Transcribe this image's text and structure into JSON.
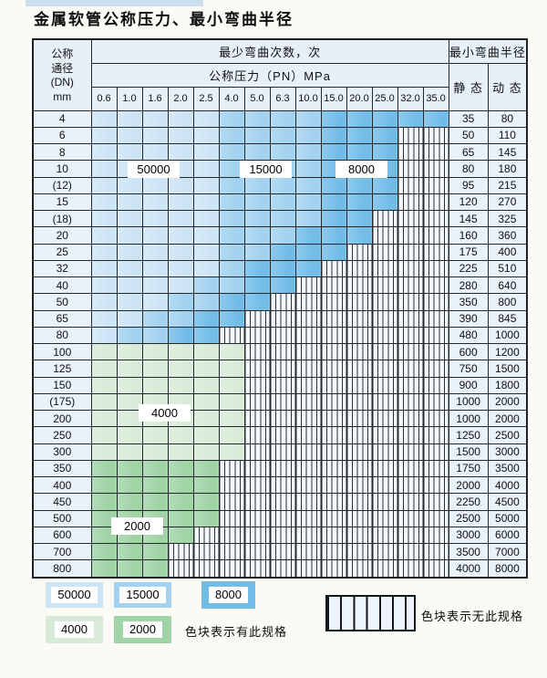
{
  "page": {
    "title": "金属软管公称压力、最小弯曲半径"
  },
  "table": {
    "header": {
      "dn_label_lines": [
        "公称",
        "通径",
        "(DN)",
        "mm"
      ],
      "bend_cycles_label": "最少弯曲次数，次",
      "pressure_label": "公称压力（PN）MPa",
      "radius_label": "最小弯曲半径",
      "static_label": "静 态",
      "dynamic_label": "动 态",
      "pressure_columns": [
        "0.6",
        "1.0",
        "1.6",
        "2.0",
        "2.5",
        "4.0",
        "5.0",
        "6.3",
        "10.0",
        "15.0",
        "20.0",
        "25.0",
        "32.0",
        "35.0"
      ]
    },
    "band_colors": {
      "L": "#cde4f5",
      "M": "#a2d2ef",
      "D": "#72bde8",
      "g": "#d8ebd8",
      "G": "#a0d3a6"
    },
    "band_meaning": {
      "L": "50000",
      "M": "15000",
      "D": "8000",
      "g": "4000",
      "G": "2000",
      "h": "无此规格"
    },
    "region_tags": [
      {
        "label": "50000"
      },
      {
        "label": "15000"
      },
      {
        "label": "8000"
      },
      {
        "label": "4000"
      },
      {
        "label": "2000"
      }
    ],
    "rows": [
      {
        "dn": "4",
        "bands": "LLLLLMMMMDDDDD",
        "static": "35",
        "dynamic": "80"
      },
      {
        "dn": "6",
        "bands": "LLLLLMMMMDDDhh",
        "static": "50",
        "dynamic": "110"
      },
      {
        "dn": "8",
        "bands": "LLLLLMMMMDDDhh",
        "static": "65",
        "dynamic": "145"
      },
      {
        "dn": "10",
        "bands": "LLLLLMMMMDDDhh",
        "static": "80",
        "dynamic": "180"
      },
      {
        "dn": "(12)",
        "bands": "LLLLLMMMMDDDhh",
        "static": "95",
        "dynamic": "215"
      },
      {
        "dn": "15",
        "bands": "LLLLLMMMMDDDhh",
        "static": "120",
        "dynamic": "270"
      },
      {
        "dn": "(18)",
        "bands": "LLLLLMMMMDDhhh",
        "static": "145",
        "dynamic": "325"
      },
      {
        "dn": "20",
        "bands": "LLLLLMMMDDDhhh",
        "static": "160",
        "dynamic": "360"
      },
      {
        "dn": "25",
        "bands": "LLLLLMMDDDhhhh",
        "static": "175",
        "dynamic": "400"
      },
      {
        "dn": "32",
        "bands": "LLLLLMDDDhhhhh",
        "static": "225",
        "dynamic": "510"
      },
      {
        "dn": "40",
        "bands": "LLLLMMDDhhhhhh",
        "static": "280",
        "dynamic": "640"
      },
      {
        "dn": "50",
        "bands": "LLLMMDDhhhhhhh",
        "static": "350",
        "dynamic": "800"
      },
      {
        "dn": "65",
        "bands": "LLMMDDhhhhhhhh",
        "static": "390",
        "dynamic": "845"
      },
      {
        "dn": "80",
        "bands": "LMMDDhhhhhhhhh",
        "static": "480",
        "dynamic": "1000"
      },
      {
        "dn": "100",
        "bands": "gggggghhhhhhhh",
        "static": "600",
        "dynamic": "1200"
      },
      {
        "dn": "125",
        "bands": "gggggghhhhhhhh",
        "static": "750",
        "dynamic": "1500"
      },
      {
        "dn": "150",
        "bands": "gggggghhhhhhhh",
        "static": "900",
        "dynamic": "1800"
      },
      {
        "dn": "(175)",
        "bands": "gggggghhhhhhhh",
        "static": "1000",
        "dynamic": "2000"
      },
      {
        "dn": "200",
        "bands": "gggggghhhhhhhh",
        "static": "1000",
        "dynamic": "2000"
      },
      {
        "dn": "250",
        "bands": "gggggghhhhhhhh",
        "static": "1250",
        "dynamic": "2500"
      },
      {
        "dn": "300",
        "bands": "gggggghhhhhhhh",
        "static": "1500",
        "dynamic": "3000"
      },
      {
        "dn": "350",
        "bands": "GGGGGhhhhhhhhh",
        "static": "1750",
        "dynamic": "3500"
      },
      {
        "dn": "400",
        "bands": "GGGGGhhhhhhhhh",
        "static": "2000",
        "dynamic": "4000"
      },
      {
        "dn": "450",
        "bands": "GGGGGhhhhhhhhh",
        "static": "2250",
        "dynamic": "4500"
      },
      {
        "dn": "500",
        "bands": "GGGGGhhhhhhhhh",
        "static": "2500",
        "dynamic": "5000"
      },
      {
        "dn": "600",
        "bands": "GGGGhhhhhhhhhh",
        "static": "3000",
        "dynamic": "6000"
      },
      {
        "dn": "700",
        "bands": "GGGhhhhhhhhhhh",
        "static": "3500",
        "dynamic": "7000"
      },
      {
        "dn": "800",
        "bands": "GGGhhhhhhhhhhh",
        "static": "4000",
        "dynamic": "8000"
      }
    ]
  },
  "legend": {
    "swatches": [
      {
        "label": "50000",
        "band": "L"
      },
      {
        "label": "15000",
        "band": "M"
      },
      {
        "label": "8000",
        "band": "D"
      },
      {
        "label": "4000",
        "band": "g"
      },
      {
        "label": "2000",
        "band": "G"
      }
    ],
    "has_spec_note": "色块表示有此规格",
    "no_spec_note": "色块表示无此规格"
  }
}
